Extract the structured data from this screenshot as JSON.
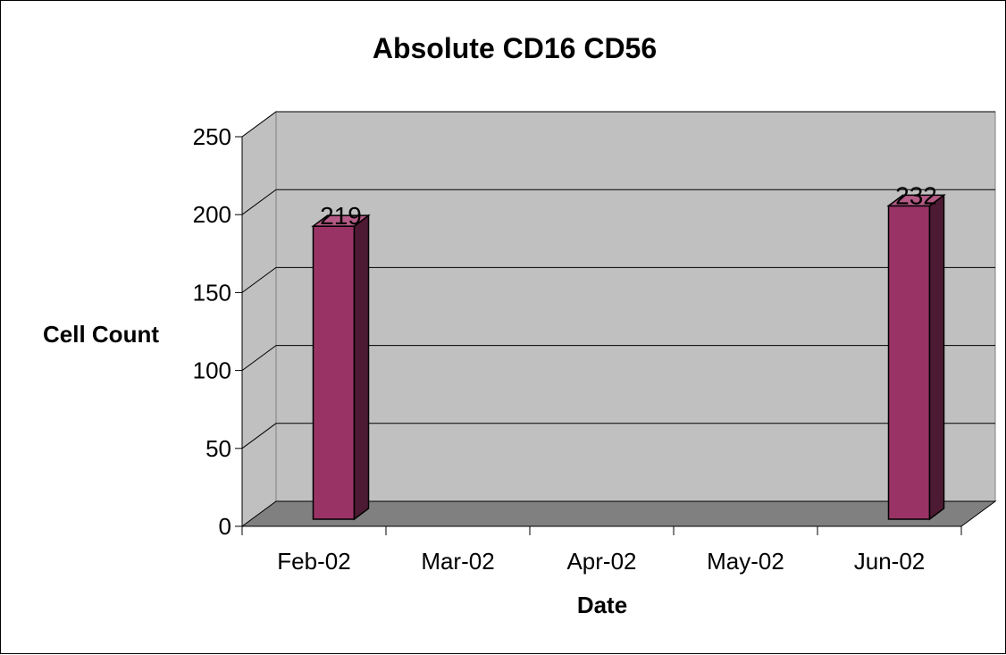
{
  "chart_data": {
    "type": "bar",
    "title": "Absolute CD16 CD56",
    "xlabel": "Date",
    "ylabel": "Cell Count",
    "categories": [
      "Feb-02",
      "Mar-02",
      "Apr-02",
      "May-02",
      "Jun-02"
    ],
    "values": [
      219,
      null,
      null,
      null,
      232
    ],
    "data_labels": [
      "219",
      "",
      "",
      "",
      "232"
    ],
    "ylim": [
      0,
      250
    ],
    "yticks": [
      "0",
      "50",
      "100",
      "150",
      "200",
      "250"
    ],
    "grid": true,
    "legend": "none",
    "style": "3d-column",
    "colors": {
      "bar_front": "#993366",
      "bar_side": "#4d1a33",
      "bar_top": "#b35a85",
      "wall": "#c0c0c0",
      "floor": "#808080",
      "gridline": "#000000"
    }
  }
}
